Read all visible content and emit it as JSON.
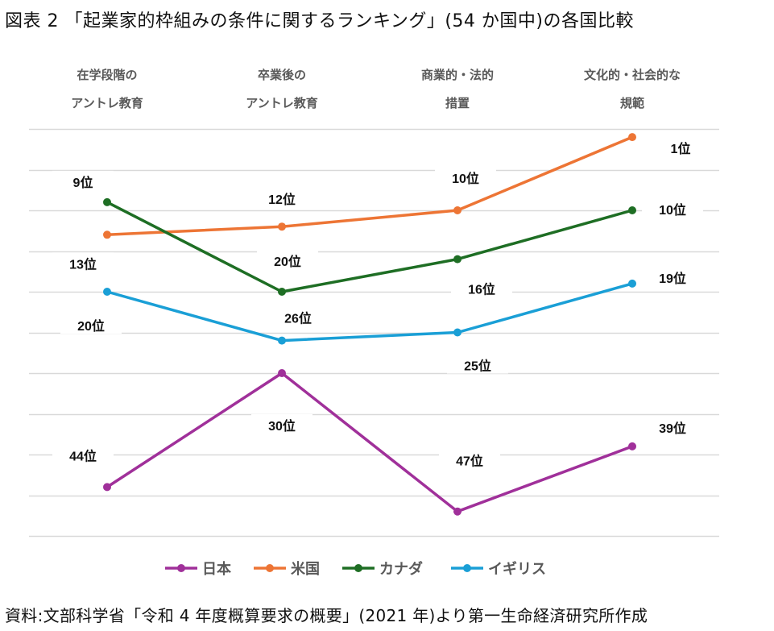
{
  "figure": {
    "title": "図表 2 「起業家的枠組みの条件に関するランキング」(54 か国中)の各国比較",
    "source": "資料:文部科学省「令和 4 年度概算要求の概要」(2021 年)より第一生命経済研究所作成"
  },
  "chart_data": {
    "type": "line",
    "title": "「起業家的枠組みの条件に関するランキング」(54 か国中)の各国比較",
    "categories": [
      [
        "在学段階の",
        "アントレ教育"
      ],
      [
        "卒業後の",
        "アントレ教育"
      ],
      [
        "商業的・法的",
        "措置"
      ],
      [
        "文化的・社会的な",
        "規範"
      ]
    ],
    "y_axis": {
      "reversed": true,
      "min": 0,
      "max": 50,
      "gridline_step": 5,
      "grid": true,
      "tick_labels_visible": false
    },
    "label_suffix": "位",
    "series": [
      {
        "name": "日本",
        "color": "#A0309A",
        "values": [
          44,
          30,
          47,
          39
        ]
      },
      {
        "name": "米国",
        "color": "#ED7535",
        "values": [
          13,
          12,
          10,
          1
        ]
      },
      {
        "name": "カナダ",
        "color": "#1E6E24",
        "values": [
          9,
          20,
          16,
          10
        ]
      },
      {
        "name": "イギリス",
        "color": "#1A9FD6",
        "values": [
          20,
          26,
          25,
          19
        ]
      }
    ],
    "data_labels": [
      {
        "series": "日本",
        "labels": [
          "44位",
          "30位",
          "47位",
          "39位"
        ]
      },
      {
        "series": "米国",
        "labels": [
          "13位",
          "12位",
          "10位",
          "1位"
        ]
      },
      {
        "series": "カナダ",
        "labels": [
          "9位",
          "20位",
          "16位",
          "10位"
        ]
      },
      {
        "series": "イギリス",
        "labels": [
          "20位",
          "26位",
          "25位",
          "19位"
        ]
      }
    ],
    "legend": {
      "position": "bottom",
      "entries": [
        "日本",
        "米国",
        "カナダ",
        "イギリス"
      ]
    },
    "gridline_color": "#D9D9D9"
  }
}
